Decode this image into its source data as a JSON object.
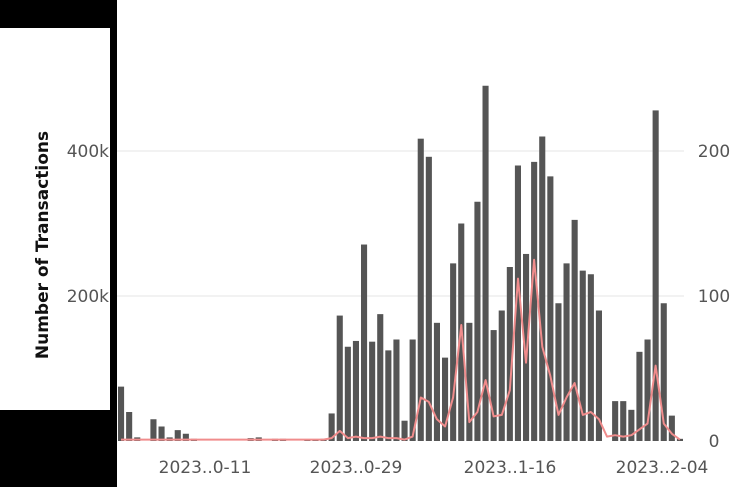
{
  "chart_data": {
    "type": "bar",
    "ylabel": "Number of Transactions",
    "y_ticks": [
      "200k",
      "400k"
    ],
    "y2_ticks": [
      "0",
      "100",
      "200"
    ],
    "x_tick_labels": [
      "2023..0-11",
      "2023..0-29",
      "2023..1-16",
      "2023..2-04"
    ],
    "ylim": [
      0,
      560000
    ],
    "y2lim": [
      0,
      280
    ],
    "grid": true,
    "bar_color": "#555555",
    "line_color": "#f08c8c",
    "series": [
      {
        "kind": "bar",
        "values": [
          75000,
          40000,
          5000,
          0,
          30000,
          20000,
          5000,
          15000,
          10000,
          3000,
          0,
          0,
          0,
          0,
          0,
          0,
          4000,
          5000,
          0,
          3000,
          3000,
          0,
          0,
          2000,
          2000,
          3000,
          38000,
          173000,
          130000,
          138000,
          271000,
          137000,
          175000,
          125000,
          140000,
          28000,
          140000,
          417000,
          392000,
          163000,
          115000,
          245000,
          300000,
          163000,
          330000,
          490000,
          153000,
          180000,
          240000,
          380000,
          258000,
          385000,
          420000,
          365000,
          190000,
          245000,
          305000,
          235000,
          230000,
          180000,
          0,
          55000,
          55000,
          43000,
          123000,
          140000,
          456000,
          190000,
          35000,
          3000
        ]
      },
      {
        "kind": "line",
        "axis": "right",
        "values": [
          1,
          1,
          1,
          1,
          1,
          1,
          1,
          1,
          1,
          1,
          1,
          1,
          1,
          1,
          1,
          1,
          1,
          1,
          1,
          1,
          1,
          1,
          1,
          1,
          1,
          1,
          2,
          7,
          2,
          3,
          2,
          2,
          3,
          2,
          2,
          1,
          3,
          30,
          27,
          15,
          10,
          30,
          80,
          13,
          20,
          42,
          17,
          18,
          35,
          112,
          54,
          125,
          65,
          45,
          18,
          30,
          40,
          18,
          20,
          15,
          3,
          4,
          3,
          4,
          8,
          12,
          52,
          12,
          5,
          1
        ]
      }
    ]
  }
}
